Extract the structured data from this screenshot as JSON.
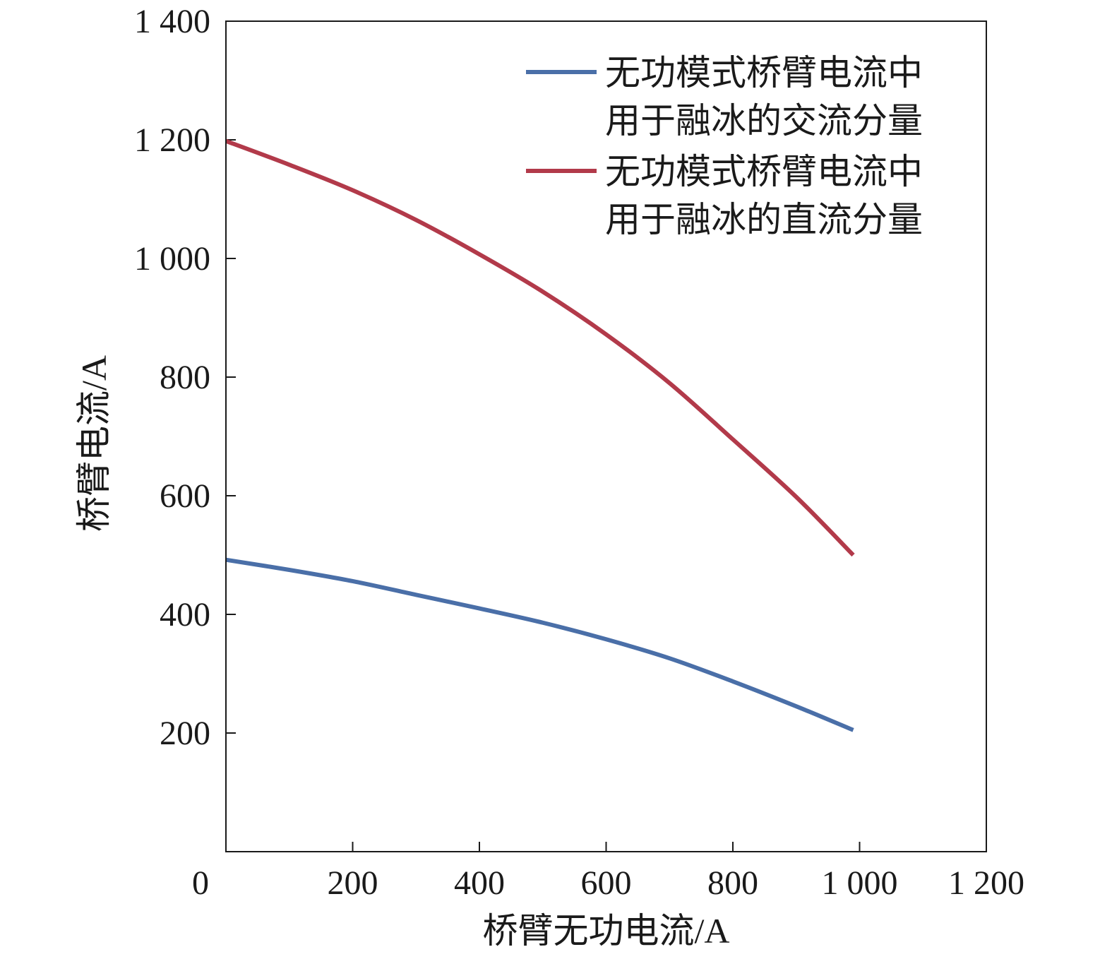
{
  "chart_data": {
    "type": "line",
    "title": "",
    "xlabel": "桥臂无功电流/A",
    "ylabel": "桥臂电流/A",
    "xlim": [
      0,
      1200
    ],
    "ylim": [
      0,
      1400
    ],
    "x_ticks": [
      {
        "value": 0,
        "label": "0"
      },
      {
        "value": 200,
        "label": "200"
      },
      {
        "value": 400,
        "label": "400"
      },
      {
        "value": 600,
        "label": "600"
      },
      {
        "value": 800,
        "label": "800"
      },
      {
        "value": 1000,
        "label": "1 000"
      },
      {
        "value": 1200,
        "label": "1 200"
      }
    ],
    "y_ticks": [
      {
        "value": 200,
        "label": "200"
      },
      {
        "value": 400,
        "label": "400"
      },
      {
        "value": 600,
        "label": "600"
      },
      {
        "value": 800,
        "label": "800"
      },
      {
        "value": 1000,
        "label": "1 000"
      },
      {
        "value": 1200,
        "label": "1 200"
      },
      {
        "value": 1400,
        "label": "1 400"
      }
    ],
    "grid": false,
    "legend_position": "top-right",
    "series": [
      {
        "name_lines": [
          "无功模式桥臂电流中",
          "用于融冰的交流分量"
        ],
        "color": "#4a6fa8",
        "x": [
          0,
          100,
          200,
          300,
          400,
          500,
          600,
          700,
          800,
          900,
          990
        ],
        "y": [
          492,
          475,
          456,
          433,
          410,
          386,
          358,
          326,
          287,
          245,
          205
        ]
      },
      {
        "name_lines": [
          "无功模式桥臂电流中",
          "用于融冰的直流分量"
        ],
        "color": "#b23a4a",
        "x": [
          0,
          100,
          200,
          300,
          400,
          500,
          600,
          700,
          800,
          900,
          990
        ],
        "y": [
          1198,
          1158,
          1115,
          1065,
          1007,
          944,
          872,
          790,
          695,
          598,
          500
        ]
      }
    ]
  }
}
